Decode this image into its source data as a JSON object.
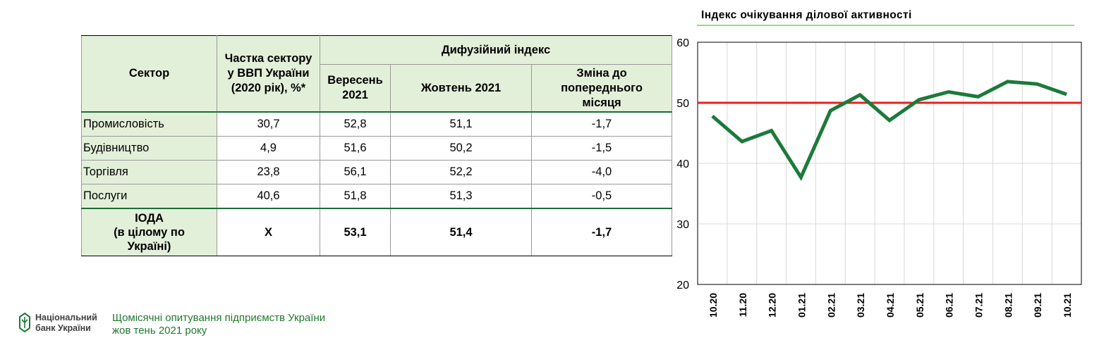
{
  "table": {
    "header": {
      "sector": "Сектор",
      "share": [
        "Частка сектору",
        "у ВВП України",
        "(2020 рік), %*"
      ],
      "diffusion_index": "Дифузійний індекс",
      "september": [
        "Вересень",
        "2021"
      ],
      "october": "Жовтень 2021",
      "change": [
        "Зміна до",
        "попереднього",
        "місяця"
      ]
    },
    "rows": [
      {
        "sector": "Промисловість",
        "share": "30,7",
        "sep": "52,8",
        "oct": "51,1",
        "change": "-1,7"
      },
      {
        "sector": "Будівництво",
        "share": "4,9",
        "sep": "51,6",
        "oct": "50,2",
        "change": "-1,5"
      },
      {
        "sector": "Торгівля",
        "share": "23,8",
        "sep": "56,1",
        "oct": "52,2",
        "change": "-4,0"
      },
      {
        "sector": "Послуги",
        "share": "40,6",
        "sep": "51,8",
        "oct": "51,3",
        "change": "-0,5"
      }
    ],
    "total": {
      "sector": [
        "ІОДА",
        "(в цілому по",
        "Україні)"
      ],
      "share": "Х",
      "sep": "53,1",
      "oct": "51,4",
      "change": "-1,7"
    }
  },
  "chart_data": {
    "type": "line",
    "title": "Індекс очікування ділової активності",
    "x": [
      "10.20",
      "11.20",
      "12.20",
      "01.21",
      "02.21",
      "03.21",
      "04.21",
      "05.21",
      "06.21",
      "07.21",
      "08.21",
      "09.21",
      "10.21"
    ],
    "series": [
      {
        "values": [
          47.8,
          43.6,
          45.4,
          37.7,
          48.7,
          51.3,
          47.1,
          50.5,
          51.8,
          51.0,
          53.5,
          53.1,
          51.4
        ],
        "color": "#1c7a3a"
      }
    ],
    "reference_line": {
      "value": 50,
      "color": "#e8201c"
    },
    "yticks": [
      20,
      30,
      40,
      50,
      60
    ],
    "ylim": [
      20,
      60
    ],
    "grid": true
  },
  "footer": {
    "bank": [
      "Національний",
      "банк України"
    ],
    "publication": [
      "Щомісячні опитування підприємств України",
      "жов тень 2021 року"
    ]
  }
}
